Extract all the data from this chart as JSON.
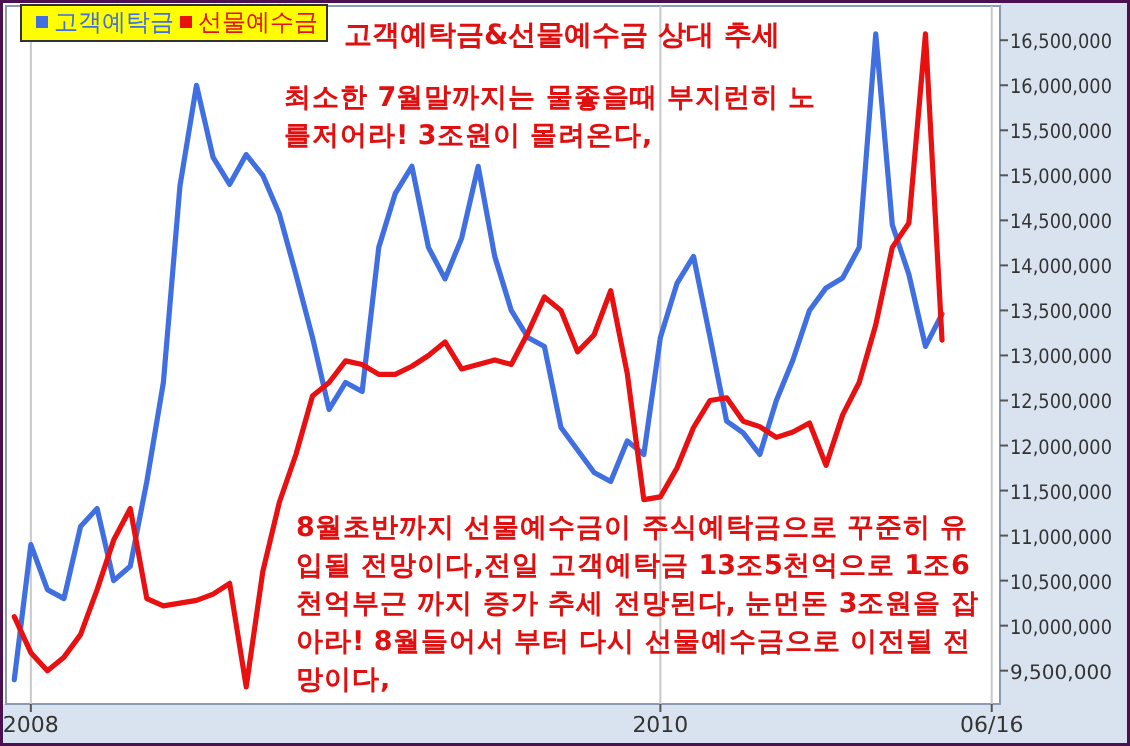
{
  "chart_data": {
    "type": "line",
    "title": "고객예탁금&선물예수금 상대 추세",
    "annotations": [
      "최소한 7월말까지는 물좋을때 부지런히 노를저어라! 3조원이 몰려온다,",
      "8월초반까지 선물예수금이 주식예탁금으로 꾸준히 유입될 전망이다,전일 고객예탁금 13조5천억으로 1조6천억부근 까지 증가 추세 전망된다, 눈먼돈 3조원을 잡아라! 8월들어서 부터 다시 선물예수금으로 이전될 전망이다,"
    ],
    "categories": [
      null,
      "2008",
      null,
      null,
      null,
      null,
      null,
      null,
      null,
      null,
      null,
      null,
      null,
      null,
      null,
      null,
      null,
      null,
      null,
      null,
      null,
      null,
      null,
      null,
      null,
      null,
      null,
      null,
      null,
      null,
      null,
      null,
      null,
      null,
      null,
      null,
      null,
      null,
      null,
      "2010",
      null,
      null,
      null,
      null,
      null,
      null,
      null,
      null,
      null,
      null,
      null,
      null,
      null,
      null,
      null,
      null,
      null,
      null,
      null,
      "06/16"
    ],
    "ylim": [
      9130000,
      16880000
    ],
    "yticks": [
      {
        "value": 9500000,
        "label": "9,500,000"
      },
      {
        "value": 10000000,
        "label": "10,000,000"
      },
      {
        "value": 10500000,
        "label": "10,500,000"
      },
      {
        "value": 11000000,
        "label": "11,000,000"
      },
      {
        "value": 11500000,
        "label": "11,500,000"
      },
      {
        "value": 12000000,
        "label": "12,000,000"
      },
      {
        "value": 12500000,
        "label": "12,500,000"
      },
      {
        "value": 13000000,
        "label": "13,000,000"
      },
      {
        "value": 13500000,
        "label": "13,500,000"
      },
      {
        "value": 14000000,
        "label": "14,000,000"
      },
      {
        "value": 14500000,
        "label": "14,500,000"
      },
      {
        "value": 15000000,
        "label": "15,000,000"
      },
      {
        "value": 15500000,
        "label": "15,500,000"
      },
      {
        "value": 16000000,
        "label": "16,000,000"
      },
      {
        "value": 16500000,
        "label": "16,500,000"
      }
    ],
    "grid": "x",
    "legend": "top left",
    "series": [
      {
        "name": "고객예탁금",
        "color": "#3f6fe0",
        "values": [
          9400000,
          10900000,
          10400000,
          10300000,
          11100000,
          11300000,
          10500000,
          10660000,
          11600000,
          12700000,
          14880000,
          16000000,
          15200000,
          14900000,
          15230000,
          15000000,
          14570000,
          13900000,
          13200000,
          12400000,
          12700000,
          12600000,
          14200000,
          14800000,
          15100000,
          14200000,
          13850000,
          14300000,
          15100000,
          14100000,
          13500000,
          13200000,
          13100000,
          12200000,
          11950000,
          11700000,
          11600000,
          12050000,
          11900000,
          13200000,
          13800000,
          14100000,
          13200000,
          12270000,
          12140000,
          11900000,
          12500000,
          12950000,
          13500000,
          13750000,
          13860000,
          14200000,
          16570000,
          14450000,
          13900000,
          13100000,
          13460000,
          null,
          null,
          null
        ]
      },
      {
        "name": "선물예수금",
        "color": "#e81010",
        "values": [
          10100000,
          9700000,
          9500000,
          9650000,
          9900000,
          10400000,
          10950000,
          11300000,
          10300000,
          10220000,
          10250000,
          10280000,
          10350000,
          10470000,
          9320000,
          10600000,
          11370000,
          11900000,
          12550000,
          12700000,
          12940000,
          12900000,
          12790000,
          12790000,
          12880000,
          13000000,
          13150000,
          12850000,
          12900000,
          12950000,
          12900000,
          13250000,
          13650000,
          13500000,
          13040000,
          13230000,
          13720000,
          12800000,
          11400000,
          11430000,
          11750000,
          12200000,
          12500000,
          12530000,
          12270000,
          12210000,
          12090000,
          12150000,
          12250000,
          11780000,
          12340000,
          12700000,
          13340000,
          14200000,
          14470000,
          16570000,
          13170000,
          null,
          null,
          null
        ]
      }
    ]
  }
}
